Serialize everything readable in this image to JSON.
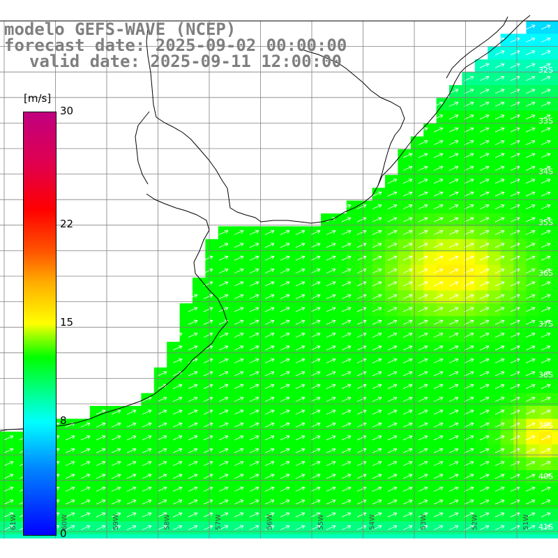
{
  "title": {
    "model": "modelo GEFS-WAVE (NCEP)",
    "forecast": "forecast date: 2025-09-02 00:00:00",
    "valid": "valid date: 2025-09-11 12:00:00"
  },
  "colorbar": {
    "unit": "[m/s]",
    "ticks": [
      {
        "value": 0,
        "label": "0"
      },
      {
        "value": 8,
        "label": "8"
      },
      {
        "value": 15,
        "label": "15"
      },
      {
        "value": 22,
        "label": "22"
      },
      {
        "value": 30,
        "label": "30"
      }
    ],
    "range": [
      0,
      30
    ],
    "colors": [
      "#0000ff",
      "#00ffff",
      "#00ff00",
      "#ffff00",
      "#ff0000",
      "#c0007f"
    ]
  },
  "map": {
    "lat_range_deg_south": [
      31.0,
      41.3
    ],
    "lon_range_deg_west": [
      51.0,
      61.5
    ],
    "lat_labels": [
      "32S",
      "33S",
      "34S",
      "35S",
      "36S",
      "37S",
      "38S",
      "39S",
      "40S",
      "41S"
    ],
    "lon_labels": [
      "61W",
      "60W",
      "59W",
      "58W",
      "57W",
      "56W",
      "55W",
      "54W",
      "53W",
      "52W",
      "51W"
    ],
    "land_color": "#ffffff",
    "grid_color": "#808080",
    "coast_color": "#000000",
    "arrow_color": "#ffffff",
    "arrow_direction": "toward east-northeast"
  }
}
